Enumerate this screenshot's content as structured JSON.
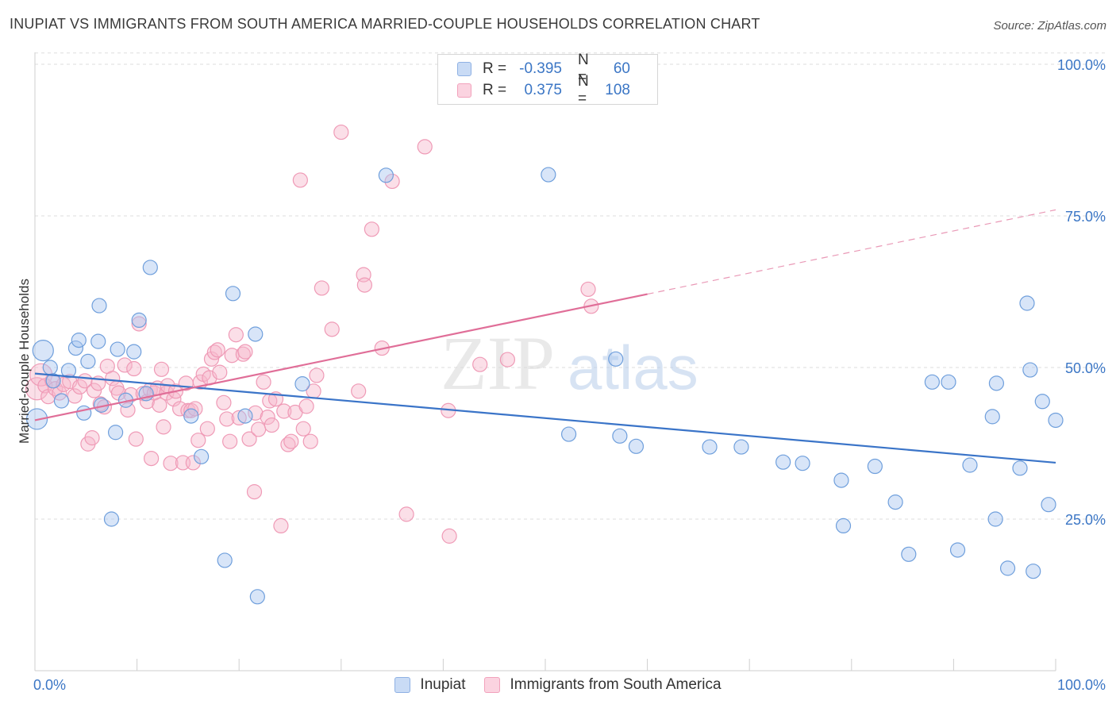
{
  "title": "INUPIAT VS IMMIGRANTS FROM SOUTH AMERICA MARRIED-COUPLE HOUSEHOLDS CORRELATION CHART",
  "source": "Source: ZipAtlas.com",
  "watermark": {
    "zip": "ZIP",
    "atlas": "atlas"
  },
  "legend": {
    "rows": [
      {
        "r_label": "R =",
        "r_value": "-0.395",
        "n_label": "N =",
        "n_value": "60"
      },
      {
        "r_label": "R =",
        "r_value": "0.375",
        "n_label": "N =",
        "n_value": "108"
      }
    ]
  },
  "bottom_legend": [
    "Inupiat",
    "Immigrants from South America"
  ],
  "chart_data": {
    "type": "scatter",
    "title": "INUPIAT VS IMMIGRANTS FROM SOUTH AMERICA MARRIED-COUPLE HOUSEHOLDS CORRELATION CHART",
    "xlabel": "",
    "ylabel": "Married-couple Households",
    "xlim": [
      0,
      100
    ],
    "ylim": [
      0,
      102
    ],
    "x_tick_labels": [
      "0.0%",
      "100.0%"
    ],
    "y_ticks": [
      25,
      50,
      75,
      100
    ],
    "y_tick_labels": [
      "25.0%",
      "50.0%",
      "75.0%",
      "100.0%"
    ],
    "grid": "horizontal dashed",
    "legend_position": "top-center",
    "colors": {
      "inupiat": "#a9c6ef",
      "inupiat_line": "#3a74c8",
      "immigrants": "#f7b9cc",
      "immigrants_line": "#e06e98"
    },
    "series": [
      {
        "name": "Inupiat",
        "trend": {
          "x": [
            0,
            100
          ],
          "y": [
            49.0,
            34.3
          ],
          "style": "solid"
        },
        "points": [
          [
            0.2,
            41.5
          ],
          [
            0.8,
            52.8
          ],
          [
            1.5,
            50.0
          ],
          [
            1.8,
            47.8
          ],
          [
            2.6,
            44.5
          ],
          [
            3.3,
            49.5
          ],
          [
            4.0,
            53.2
          ],
          [
            4.3,
            54.5
          ],
          [
            4.8,
            42.5
          ],
          [
            5.2,
            51.0
          ],
          [
            6.2,
            54.3
          ],
          [
            6.3,
            60.2
          ],
          [
            6.5,
            43.8
          ],
          [
            7.5,
            25.0
          ],
          [
            7.9,
            39.3
          ],
          [
            8.1,
            53.0
          ],
          [
            8.9,
            44.6
          ],
          [
            9.7,
            52.6
          ],
          [
            10.2,
            57.8
          ],
          [
            10.9,
            45.7
          ],
          [
            11.3,
            66.5
          ],
          [
            15.3,
            42.0
          ],
          [
            16.3,
            35.3
          ],
          [
            18.6,
            18.2
          ],
          [
            19.4,
            62.2
          ],
          [
            20.6,
            42.0
          ],
          [
            21.6,
            55.5
          ],
          [
            21.8,
            12.2
          ],
          [
            26.2,
            47.3
          ],
          [
            34.4,
            81.7
          ],
          [
            50.3,
            81.8
          ],
          [
            52.3,
            39.0
          ],
          [
            56.9,
            51.4
          ],
          [
            57.3,
            38.7
          ],
          [
            58.9,
            37.0
          ],
          [
            66.1,
            36.9
          ],
          [
            69.2,
            36.9
          ],
          [
            73.3,
            34.4
          ],
          [
            75.2,
            34.2
          ],
          [
            79.0,
            31.4
          ],
          [
            79.2,
            23.9
          ],
          [
            82.3,
            33.7
          ],
          [
            84.3,
            27.8
          ],
          [
            85.6,
            19.2
          ],
          [
            87.9,
            47.6
          ],
          [
            89.5,
            47.6
          ],
          [
            90.4,
            19.9
          ],
          [
            91.6,
            33.9
          ],
          [
            93.8,
            41.9
          ],
          [
            94.1,
            25.0
          ],
          [
            94.2,
            47.4
          ],
          [
            95.3,
            16.9
          ],
          [
            96.5,
            33.4
          ],
          [
            97.2,
            60.6
          ],
          [
            97.5,
            49.6
          ],
          [
            97.8,
            16.4
          ],
          [
            98.7,
            44.4
          ],
          [
            99.3,
            27.4
          ],
          [
            100.0,
            41.3
          ]
        ]
      },
      {
        "name": "Immigrants from South America",
        "trend": {
          "x": [
            0,
            60,
            100
          ],
          "y": [
            41.3,
            62.1,
            76.0
          ],
          "style": "solid then dashed"
        },
        "points": [
          [
            0.2,
            46.5
          ],
          [
            0.6,
            48.8
          ],
          [
            1.0,
            47.0
          ],
          [
            1.3,
            45.2
          ],
          [
            1.7,
            47.8
          ],
          [
            2.0,
            46.5
          ],
          [
            2.4,
            45.8
          ],
          [
            2.8,
            47.2
          ],
          [
            3.4,
            47.7
          ],
          [
            3.9,
            45.3
          ],
          [
            4.4,
            46.8
          ],
          [
            4.9,
            47.8
          ],
          [
            5.2,
            37.4
          ],
          [
            5.6,
            38.4
          ],
          [
            5.8,
            46.2
          ],
          [
            6.2,
            47.4
          ],
          [
            6.4,
            44.0
          ],
          [
            6.8,
            43.5
          ],
          [
            7.1,
            50.2
          ],
          [
            7.6,
            48.2
          ],
          [
            8.0,
            46.6
          ],
          [
            8.2,
            45.8
          ],
          [
            8.8,
            50.4
          ],
          [
            9.1,
            43.0
          ],
          [
            9.4,
            45.5
          ],
          [
            9.7,
            49.8
          ],
          [
            9.9,
            38.2
          ],
          [
            10.2,
            57.2
          ],
          [
            10.6,
            45.7
          ],
          [
            11.0,
            44.4
          ],
          [
            11.3,
            46.3
          ],
          [
            11.4,
            35.0
          ],
          [
            11.7,
            45.8
          ],
          [
            12.0,
            46.6
          ],
          [
            12.2,
            43.8
          ],
          [
            12.4,
            49.7
          ],
          [
            12.6,
            40.2
          ],
          [
            12.9,
            45.8
          ],
          [
            13.0,
            47.0
          ],
          [
            13.3,
            34.2
          ],
          [
            13.6,
            44.8
          ],
          [
            13.8,
            46.1
          ],
          [
            14.2,
            43.2
          ],
          [
            14.5,
            34.3
          ],
          [
            14.8,
            47.4
          ],
          [
            15.0,
            42.9
          ],
          [
            15.3,
            42.9
          ],
          [
            15.5,
            34.3
          ],
          [
            15.7,
            43.2
          ],
          [
            16.0,
            38.0
          ],
          [
            16.2,
            47.6
          ],
          [
            16.5,
            48.9
          ],
          [
            16.9,
            39.9
          ],
          [
            17.1,
            48.3
          ],
          [
            17.3,
            51.4
          ],
          [
            17.6,
            52.5
          ],
          [
            17.9,
            52.9
          ],
          [
            18.1,
            49.2
          ],
          [
            18.5,
            44.2
          ],
          [
            18.8,
            41.5
          ],
          [
            19.1,
            37.8
          ],
          [
            19.3,
            52.0
          ],
          [
            19.7,
            55.4
          ],
          [
            20.0,
            41.7
          ],
          [
            20.4,
            52.2
          ],
          [
            20.6,
            52.6
          ],
          [
            21.0,
            38.2
          ],
          [
            21.5,
            29.5
          ],
          [
            21.6,
            42.5
          ],
          [
            21.9,
            39.8
          ],
          [
            22.4,
            47.6
          ],
          [
            22.8,
            41.8
          ],
          [
            23.0,
            44.5
          ],
          [
            23.2,
            40.5
          ],
          [
            23.6,
            44.8
          ],
          [
            24.1,
            23.9
          ],
          [
            24.4,
            42.8
          ],
          [
            24.8,
            37.3
          ],
          [
            25.1,
            37.8
          ],
          [
            25.5,
            42.6
          ],
          [
            26.0,
            80.9
          ],
          [
            26.3,
            39.9
          ],
          [
            26.6,
            43.6
          ],
          [
            27.0,
            37.8
          ],
          [
            27.3,
            46.1
          ],
          [
            27.6,
            48.7
          ],
          [
            28.1,
            63.1
          ],
          [
            29.1,
            56.3
          ],
          [
            30.0,
            88.8
          ],
          [
            31.7,
            46.1
          ],
          [
            32.2,
            65.3
          ],
          [
            32.3,
            63.6
          ],
          [
            33.0,
            72.8
          ],
          [
            34.0,
            53.2
          ],
          [
            35.0,
            80.7
          ],
          [
            36.4,
            25.8
          ],
          [
            38.2,
            86.4
          ],
          [
            40.5,
            42.9
          ],
          [
            40.6,
            22.2
          ],
          [
            43.6,
            50.5
          ],
          [
            46.3,
            51.3
          ],
          [
            54.2,
            62.9
          ],
          [
            54.5,
            60.1
          ],
          [
            59.6,
            100.2
          ]
        ]
      }
    ]
  }
}
